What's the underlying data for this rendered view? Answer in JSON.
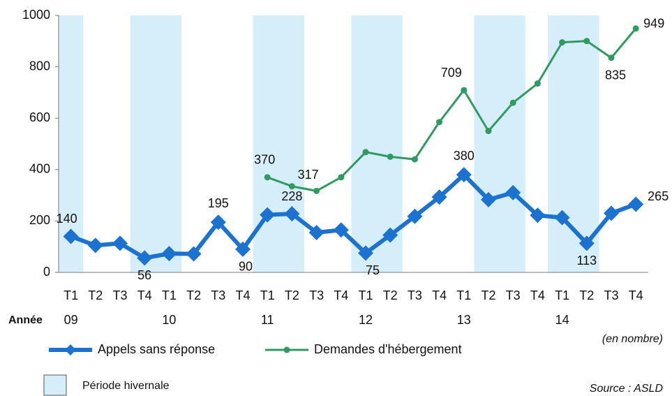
{
  "chart_data": {
    "type": "line",
    "categories": [
      "T1",
      "T2",
      "T3",
      "T4",
      "T1",
      "T2",
      "T3",
      "T4",
      "T1",
      "T2",
      "T3",
      "T4",
      "T1",
      "T2",
      "T3",
      "T4",
      "T1",
      "T2",
      "T3",
      "T4",
      "T1",
      "T2",
      "T3",
      "T4"
    ],
    "year_axis_label": "Année",
    "year_labels": [
      "09",
      null,
      null,
      null,
      "10",
      null,
      null,
      null,
      "11",
      null,
      null,
      null,
      "12",
      null,
      null,
      null,
      "13",
      null,
      null,
      null,
      "14",
      null,
      null,
      null
    ],
    "series": [
      {
        "name": "Appels sans réponse",
        "color": "#1b72d0",
        "values": [
          140,
          105,
          113,
          56,
          73,
          72,
          195,
          90,
          224,
          228,
          155,
          165,
          75,
          145,
          218,
          293,
          380,
          283,
          310,
          222,
          213,
          113,
          230,
          265
        ],
        "labeled_points": [
          0,
          3,
          6,
          7,
          9,
          12,
          16,
          21,
          23
        ]
      },
      {
        "name": "Demandes d'hébergement",
        "color": "#2f9a62",
        "values": [
          null,
          null,
          null,
          null,
          null,
          null,
          null,
          null,
          370,
          335,
          317,
          370,
          468,
          450,
          440,
          585,
          709,
          550,
          660,
          735,
          895,
          900,
          835,
          949
        ],
        "labeled_points": [
          8,
          10,
          16,
          22,
          23
        ]
      }
    ],
    "shaded_periods": {
      "name": "Période hivernale",
      "color": "#d5eefa",
      "ranges": [
        [
          0,
          0
        ],
        [
          3,
          4
        ],
        [
          8,
          9
        ],
        [
          12,
          13
        ],
        [
          17,
          18
        ],
        [
          20,
          21
        ]
      ]
    },
    "ylim": [
      0,
      1000
    ],
    "yticks": [
      0,
      200,
      400,
      600,
      800,
      1000
    ],
    "unit_note": "(en nombre)",
    "source": "Source : ASLD"
  }
}
